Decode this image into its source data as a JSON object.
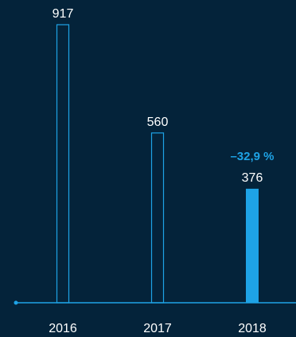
{
  "chart_data": {
    "type": "bar",
    "categories": [
      "2016",
      "2017",
      "2018"
    ],
    "values": [
      917,
      560,
      376
    ],
    "value_labels": [
      "917",
      "560",
      "376"
    ],
    "ylim": [
      0,
      1000
    ],
    "grid": false,
    "annotation": {
      "category": "2018",
      "text": "–32,9 %"
    },
    "colors": {
      "background": "#04233a",
      "bar_outline": "#1ea3e6",
      "bar_highlight": "#1ea3e6",
      "axis": "#1ea3e6",
      "text": "#ffffff",
      "annotation": "#1ea3e6"
    }
  }
}
